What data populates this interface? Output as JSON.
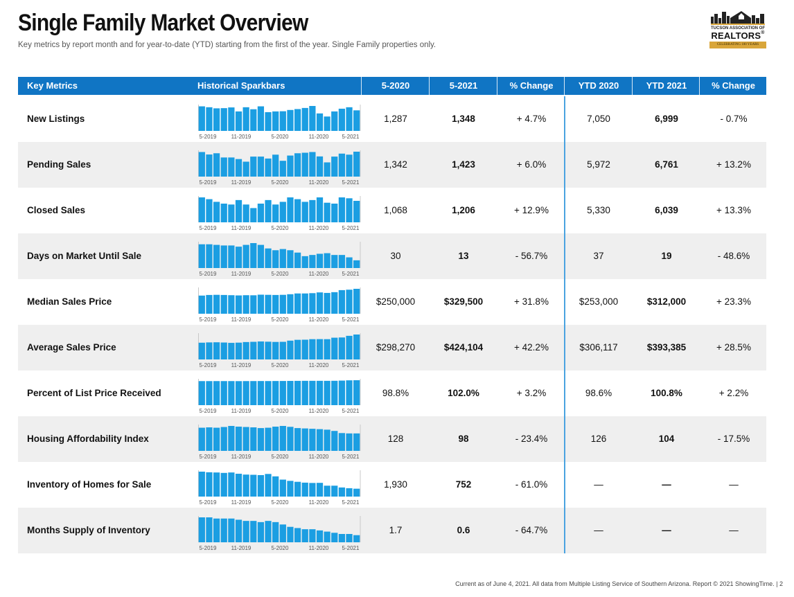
{
  "header": {
    "title": "Single Family Market Overview",
    "subtitle": "Key metrics by report month and for year-to-date (YTD) starting from the first of the year. Single Family properties only."
  },
  "logo": {
    "line1": "TUCSON ASSOCIATION OF",
    "line2": "REALTORS",
    "line3": "CELEBRATING 100 YEARS",
    "accent": "#d9a63a"
  },
  "table": {
    "columns": [
      "Key Metrics",
      "Historical Sparkbars",
      "5-2020",
      "5-2021",
      "% Change",
      "YTD 2020",
      "YTD 2021",
      "% Change"
    ],
    "header_color": "#1075c4",
    "bar_color": "#1b9ee2",
    "spark_axis": [
      "5-2019",
      "11-2019",
      "5-2020",
      "11-2020",
      "5-2021"
    ],
    "rows": [
      {
        "metric": "New Listings",
        "m2020": "1,287",
        "m2021": "1,348",
        "mchg": "+ 4.7%",
        "y2020": "7,050",
        "y2021": "6,999",
        "ychg": "- 0.7%",
        "spark": [
          1350,
          1300,
          1240,
          1250,
          1290,
          1070,
          1300,
          1190,
          1350,
          1030,
          1070,
          1080,
          1150,
          1200,
          1260,
          1370,
          960,
          790,
          1070,
          1220,
          1300,
          1130
        ]
      },
      {
        "metric": "Pending Sales",
        "m2020": "1,342",
        "m2021": "1,423",
        "mchg": "+ 6.0%",
        "y2020": "5,972",
        "y2021": "6,761",
        "ychg": "+ 13.2%",
        "spark": [
          1400,
          1260,
          1330,
          1090,
          1090,
          1000,
          850,
          1140,
          1140,
          1030,
          1250,
          900,
          1200,
          1330,
          1360,
          1400,
          1150,
          810,
          1140,
          1310,
          1250,
          1420
        ]
      },
      {
        "metric": "Closed Sales",
        "m2020": "1,068",
        "m2021": "1,206",
        "mchg": "+ 12.9%",
        "y2020": "5,330",
        "y2021": "6,039",
        "ychg": "+ 13.3%",
        "spark": [
          1400,
          1300,
          1150,
          1050,
          1000,
          1250,
          1000,
          800,
          1050,
          1250,
          1000,
          1150,
          1400,
          1300,
          1150,
          1250,
          1400,
          1100,
          1050,
          1400,
          1350,
          1206
        ]
      },
      {
        "metric": "Days on Market Until Sale",
        "m2020": "30",
        "m2021": "13",
        "mchg": "- 56.7%",
        "y2020": "37",
        "y2021": "19",
        "ychg": "- 48.6%",
        "spark": [
          40,
          40,
          39,
          38,
          38,
          36,
          39,
          42,
          39,
          33,
          30,
          32,
          30,
          26,
          20,
          22,
          24,
          25,
          22,
          22,
          18,
          13
        ]
      },
      {
        "metric": "Median Sales Price",
        "m2020": "$250,000",
        "m2021": "$329,500",
        "mchg": "+ 31.8%",
        "y2020": "$253,000",
        "y2021": "$312,000",
        "ychg": "+ 23.3%",
        "spark": [
          240000,
          248000,
          250000,
          248000,
          245000,
          242000,
          245000,
          244000,
          252000,
          250000,
          248000,
          250000,
          258000,
          268000,
          268000,
          272000,
          282000,
          275000,
          285000,
          312000,
          318000,
          329500
        ]
      },
      {
        "metric": "Average Sales Price",
        "m2020": "$298,270",
        "m2021": "$424,104",
        "mchg": "+ 42.2%",
        "y2020": "$306,117",
        "y2021": "$393,385",
        "ychg": "+ 28.5%",
        "spark": [
          285000,
          290000,
          292000,
          288000,
          282000,
          286000,
          296000,
          300000,
          306000,
          302000,
          298000,
          300000,
          320000,
          334000,
          336000,
          345000,
          346000,
          345000,
          370000,
          374000,
          402000,
          424104
        ]
      },
      {
        "metric": "Percent of List Price Received",
        "m2020": "98.8%",
        "m2021": "102.0%",
        "mchg": "+ 3.2%",
        "y2020": "98.6%",
        "y2021": "100.8%",
        "ychg": "+ 2.2%",
        "spark": [
          98.4,
          98.4,
          98.5,
          98.5,
          98.5,
          98.3,
          98.5,
          98.6,
          98.7,
          98.6,
          98.8,
          98.9,
          99.2,
          99.4,
          99.6,
          99.6,
          99.6,
          99.5,
          99.7,
          100.5,
          101.6,
          102.0
        ]
      },
      {
        "metric": "Housing Affordability Index",
        "m2020": "128",
        "m2021": "98",
        "mchg": "- 23.4%",
        "y2020": "126",
        "y2021": "104",
        "ychg": "- 17.5%",
        "spark": [
          130,
          132,
          130,
          134,
          140,
          136,
          134,
          132,
          128,
          130,
          136,
          140,
          135,
          128,
          126,
          124,
          122,
          119,
          112,
          100,
          98,
          98
        ]
      },
      {
        "metric": "Inventory of Homes for Sale",
        "m2020": "1,930",
        "m2021": "752",
        "mchg": "- 61.0%",
        "y2020": "—",
        "y2021": "—",
        "ychg": "—",
        "spark": [
          2380,
          2320,
          2300,
          2260,
          2300,
          2180,
          2100,
          2080,
          2050,
          2160,
          1930,
          1620,
          1500,
          1410,
          1330,
          1300,
          1310,
          1040,
          1040,
          870,
          800,
          752
        ]
      },
      {
        "metric": "Months Supply of Inventory",
        "m2020": "1.7",
        "m2021": "0.6",
        "mchg": "- 64.7%",
        "y2020": "—",
        "y2021": "—",
        "ychg": "—",
        "spark": [
          2.1,
          2.1,
          2.0,
          2.0,
          2.0,
          1.9,
          1.8,
          1.8,
          1.7,
          1.8,
          1.7,
          1.5,
          1.3,
          1.2,
          1.1,
          1.1,
          1.0,
          0.9,
          0.8,
          0.7,
          0.7,
          0.6
        ]
      }
    ]
  },
  "footer": "Current as of June 4, 2021. All data from Multiple Listing Service of Southern Arizona. Report © 2021 ShowingTime.  |  2"
}
